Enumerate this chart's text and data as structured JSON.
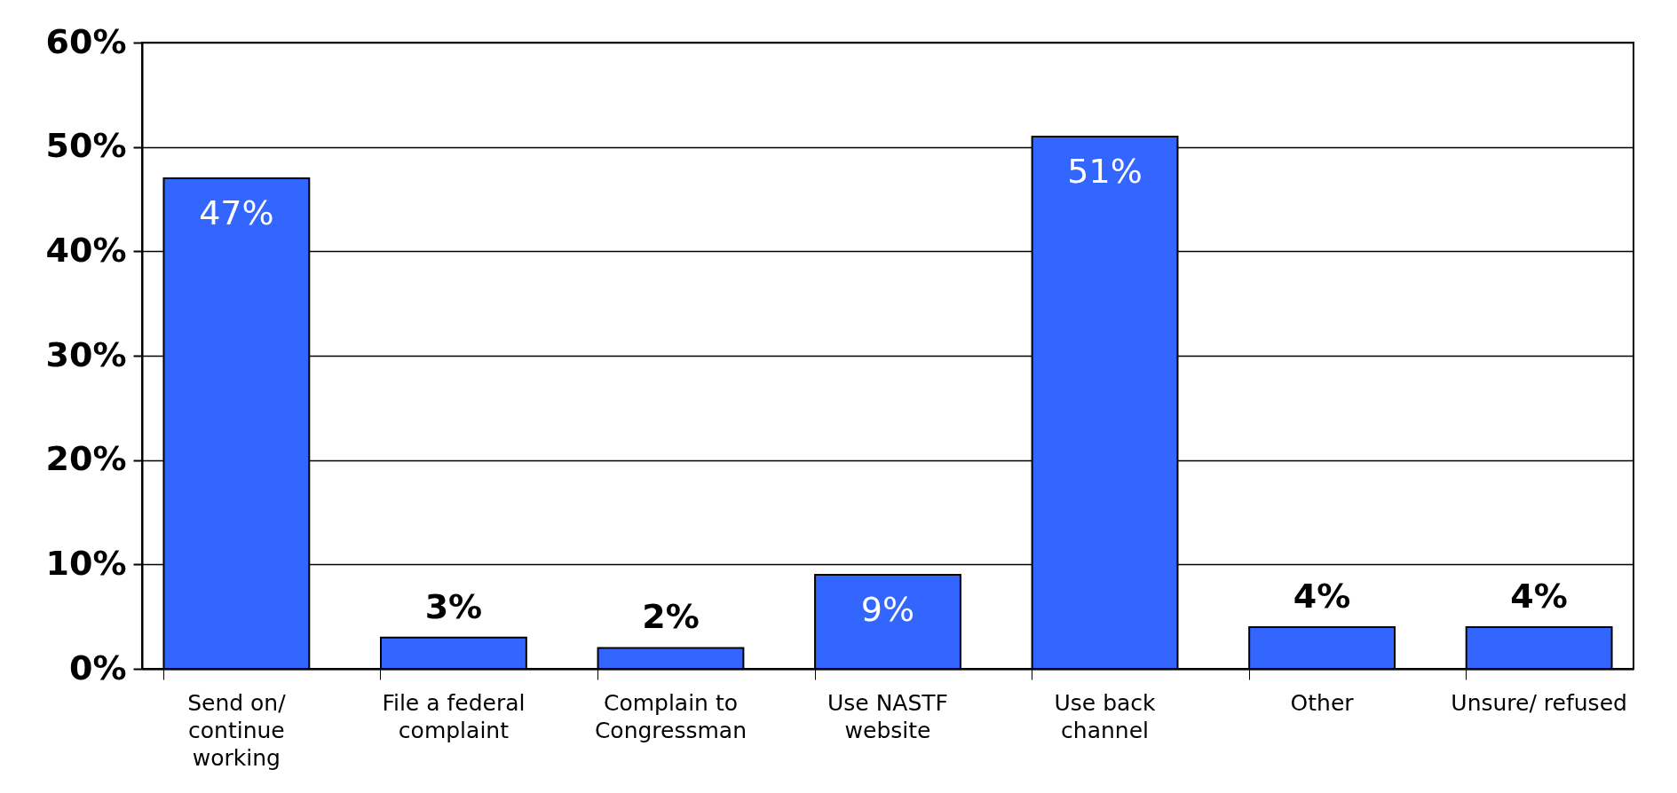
{
  "chart_data": {
    "type": "bar",
    "categories": [
      "Send on/ continue working",
      "File a federal complaint",
      "Complain to Congressman",
      "Use NASTF website",
      "Use back channel",
      "Other",
      "Unsure/ refused"
    ],
    "values": [
      47,
      3,
      2,
      9,
      51,
      4,
      4
    ],
    "value_labels": [
      "47%",
      "3%",
      "2%",
      "9%",
      "51%",
      "4%",
      "4%"
    ],
    "color": "#3366ff",
    "ylim": [
      0,
      60
    ],
    "yticks": [
      {
        "value": 0,
        "label": "0%"
      },
      {
        "value": 10,
        "label": "10%"
      },
      {
        "value": 20,
        "label": "20%"
      },
      {
        "value": 30,
        "label": "30%"
      },
      {
        "value": 40,
        "label": "40%"
      },
      {
        "value": 50,
        "label": "50%"
      },
      {
        "value": 60,
        "label": "60%"
      }
    ],
    "grid": "y"
  }
}
